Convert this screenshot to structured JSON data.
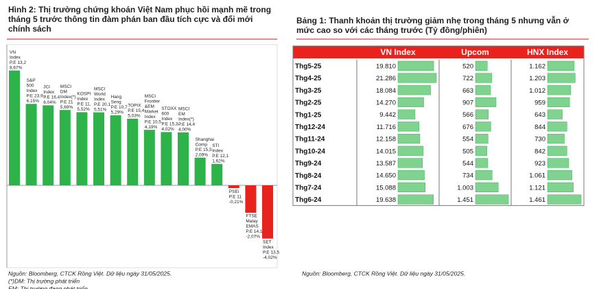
{
  "chart_data": {
    "type": "bar",
    "title": [
      "Hình 2: Thị trường chứng khoán Việt Nam phục hồi mạnh mẽ trong",
      "tháng 5 trước thông tin đàm phán ban đầu tích cực và đổi mới",
      "chính sách"
    ],
    "categories": [
      [
        "VN",
        "Index"
      ],
      [
        "S&P",
        "500",
        "Index"
      ],
      [
        "JCI",
        "Index"
      ],
      [
        "MSCI",
        "DM",
        "Index(*)"
      ],
      [
        "KOSPI",
        "Index"
      ],
      [
        "MSCI",
        "World",
        "Index"
      ],
      [
        "Hang",
        "Seng"
      ],
      [
        "TOPIX"
      ],
      [
        "MSCI",
        "Frontier",
        "&EM",
        "Market",
        "Index"
      ],
      [
        "STOXX",
        "600",
        "Index"
      ],
      [
        "MSCI",
        "EM",
        "Index(*)"
      ],
      [
        "Shanghai",
        "Comp"
      ],
      [
        "STI",
        "Index"
      ],
      [
        "PSEi"
      ],
      [
        "FTSE",
        "Malay",
        "EMAS"
      ],
      [
        "SET",
        "Index"
      ]
    ],
    "pe": [
      "P.E 13,2",
      "P.E 23,9",
      "P.E 16,4",
      "P.E 21",
      "P.E 11,",
      "P.E 20,1",
      "P.E 10,7",
      "P.E 15,4",
      "P.E 10,5",
      "P.E 15,3",
      "P.E 14,4",
      "P.E 15,5",
      "P.E 12,1",
      "P.E 11",
      "P.E 14,1",
      "P.E 13,5"
    ],
    "values": [
      8.67,
      6.15,
      6.04,
      5.69,
      5.52,
      5.51,
      5.29,
      5.03,
      4.19,
      4.02,
      4.0,
      2.09,
      1.62,
      -0.21,
      -2.07,
      -4.02
    ],
    "value_labels": [
      "8,67%",
      "6,15%",
      "6,04%",
      "5,69%",
      "5,52%",
      "5,51%",
      "5,29%",
      "5,03%",
      "4,19%",
      "4,02%",
      "4,00%",
      "2,09%",
      "1,62%",
      "-0,21%",
      "-2,07%",
      "-4,02%"
    ],
    "colors": {
      "positive": "#2db34a",
      "negative": "#e8231e"
    },
    "notes": [
      "Nguồn: Bloomberg, CTCK Rồng Việt. Dữ liệu ngày 31/05/2025.",
      "(*)DM: Thị trường phát triển",
      "EM: Thị trường đang phát triển"
    ]
  },
  "table": {
    "title": [
      "Bảng 1: Thanh khoản thị trường giảm nhẹ trong tháng 5 nhưng vẫn ở",
      "mức cao so với các tháng trước (Tỷ đồng/phiên)"
    ],
    "columns": [
      "VN Index",
      "Upcom",
      "HNX Index"
    ],
    "rows": [
      [
        "Thg5-25",
        {
          "value": 19810,
          "label": "19.810"
        },
        520,
        {
          "value": 1162,
          "label": "1.162"
        }
      ],
      [
        "Thg4-25",
        {
          "value": 21286,
          "label": "21.286"
        },
        722,
        {
          "value": 1203,
          "label": "1.203"
        }
      ],
      [
        "Thg3-25",
        {
          "value": 18084,
          "label": "18.084"
        },
        663,
        {
          "value": 1012,
          "label": "1.012"
        }
      ],
      [
        "Thg2-25",
        {
          "value": 14270,
          "label": "14.270"
        },
        907,
        959
      ],
      [
        "Thg1-25",
        {
          "value": 9442,
          "label": "9.442"
        },
        566,
        643
      ],
      [
        "Thg12-24",
        {
          "value": 11716,
          "label": "11.716"
        },
        676,
        844
      ],
      [
        "Thg11-24",
        {
          "value": 12158,
          "label": "12.158"
        },
        554,
        730
      ],
      [
        "Thg10-24",
        {
          "value": 14015,
          "label": "14.015"
        },
        505,
        842
      ],
      [
        "Thg9-24",
        {
          "value": 13587,
          "label": "13.587"
        },
        544,
        923
      ],
      [
        "Thg8-24",
        {
          "value": 14650,
          "label": "14.650"
        },
        734,
        {
          "value": 1061,
          "label": "1.061"
        }
      ],
      [
        "Thg7-24",
        {
          "value": 15088,
          "label": "15.088"
        },
        {
          "value": 1003,
          "label": "1.003"
        },
        {
          "value": 1121,
          "label": "1.121"
        }
      ],
      [
        "Thg6-24",
        {
          "value": 19638,
          "label": "19.638"
        },
        {
          "value": 1451,
          "label": "1.451"
        },
        {
          "value": 1461,
          "label": "1.461"
        }
      ]
    ],
    "note": "Nguồn: Bloomberg, CTCK Rồng Việt. Dữ liệu ngày 31/05/2025."
  }
}
